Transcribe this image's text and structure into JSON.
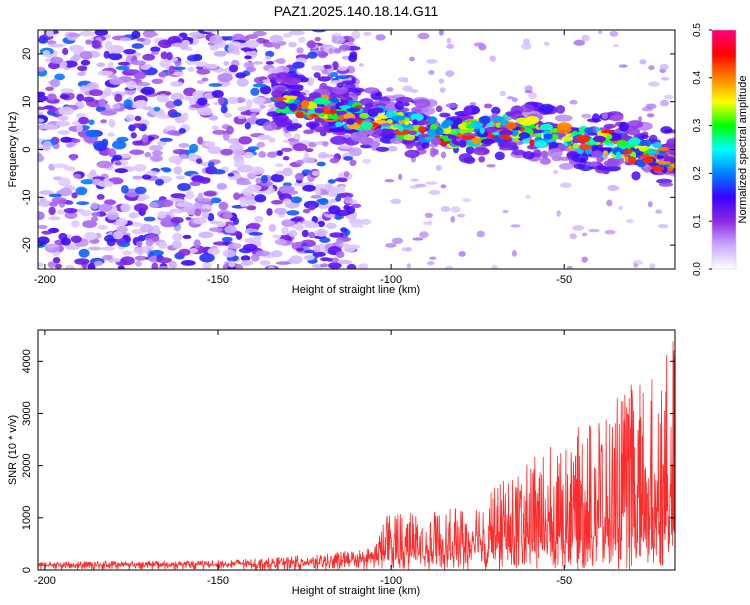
{
  "title": "PAZ1.2025.140.18.14.G11",
  "chart_data": [
    {
      "type": "heatmap",
      "xlabel": "Height of straight line (km)",
      "ylabel": "Frequency (Hz)",
      "xlim": [
        -202,
        -18
      ],
      "ylim": [
        -25,
        25
      ],
      "xticks": [
        -200,
        -150,
        -100,
        -50
      ],
      "yticks": [
        -20,
        -10,
        0,
        10,
        20
      ],
      "colorbar": {
        "label": "Normalized spectral amplitude",
        "range": [
          0.0,
          0.5
        ],
        "ticks": [
          "0.0",
          "0.1",
          "0.2",
          "0.3",
          "0.4",
          "0.5"
        ],
        "colors": [
          "#ffffff",
          "#c9a8ff",
          "#8a2be2",
          "#3a00ff",
          "#0080ff",
          "#00ffff",
          "#00ff00",
          "#ffff00",
          "#ff8000",
          "#ff0000",
          "#ff0080"
        ]
      },
      "ridge": {
        "description_points": [
          [
            -130,
            10
          ],
          [
            -110,
            7
          ],
          [
            -95,
            5
          ],
          [
            -80,
            3
          ],
          [
            -65,
            5
          ],
          [
            -55,
            3
          ],
          [
            -45,
            2
          ],
          [
            -35,
            1
          ],
          [
            -20,
            -2
          ]
        ],
        "peak_amplitude": 0.45
      },
      "noise_region_xmax": -120
    },
    {
      "type": "line",
      "xlabel": "Height of straight line (km)",
      "ylabel": "SNR (10 * v/v)",
      "xlim": [
        -202,
        -18
      ],
      "ylim": [
        0,
        4600
      ],
      "xticks": [
        -200,
        -150,
        -100,
        -50
      ],
      "yticks": [
        0,
        1000,
        2000,
        3000,
        4000
      ],
      "series": [
        {
          "color": "#ff2a2a",
          "envelope": [
            [
              -202,
              160
            ],
            [
              -180,
              180
            ],
            [
              -160,
              170
            ],
            [
              -140,
              220
            ],
            [
              -120,
              300
            ],
            [
              -105,
              450
            ],
            [
              -100,
              1300
            ],
            [
              -90,
              1100
            ],
            [
              -80,
              1200
            ],
            [
              -70,
              1600
            ],
            [
              -60,
              2100
            ],
            [
              -50,
              2600
            ],
            [
              -40,
              3000
            ],
            [
              -30,
              3600
            ],
            [
              -22,
              3800
            ],
            [
              -18,
              4600
            ]
          ],
          "baseline": [
            [
              -202,
              80
            ],
            [
              -150,
              90
            ],
            [
              -120,
              110
            ],
            [
              -100,
              200
            ],
            [
              -80,
              300
            ],
            [
              -60,
              450
            ],
            [
              -40,
              600
            ],
            [
              -18,
              700
            ]
          ]
        }
      ]
    }
  ]
}
